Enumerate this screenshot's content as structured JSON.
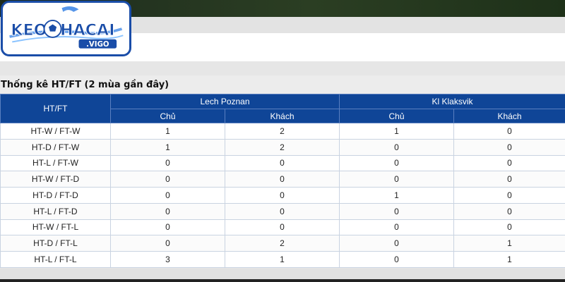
{
  "logo": {
    "brand": "KEONHACAI",
    "sub": ".VIGO"
  },
  "section": {
    "title": "Thống kê HT/FT (2 mùa gần đây)"
  },
  "table": {
    "col_label": "HT/FT",
    "teams": [
      {
        "name": "Lech Poznan",
        "home": "Chủ",
        "away": "Khách"
      },
      {
        "name": "Kl Klaksvik",
        "home": "Chủ",
        "away": "Khách"
      }
    ],
    "rows": [
      {
        "label": "HT-W / FT-W",
        "values": [
          "1",
          "2",
          "1",
          "0"
        ]
      },
      {
        "label": "HT-D / FT-W",
        "values": [
          "1",
          "2",
          "0",
          "0"
        ]
      },
      {
        "label": "HT-L / FT-W",
        "values": [
          "0",
          "0",
          "0",
          "0"
        ]
      },
      {
        "label": "HT-W / FT-D",
        "values": [
          "0",
          "0",
          "0",
          "0"
        ]
      },
      {
        "label": "HT-D / FT-D",
        "values": [
          "0",
          "0",
          "1",
          "0"
        ]
      },
      {
        "label": "HT-L / FT-D",
        "values": [
          "0",
          "0",
          "0",
          "0"
        ]
      },
      {
        "label": "HT-W / FT-L",
        "values": [
          "0",
          "0",
          "0",
          "0"
        ]
      },
      {
        "label": "HT-D / FT-L",
        "values": [
          "0",
          "2",
          "0",
          "1"
        ]
      },
      {
        "label": "HT-L / FT-L",
        "values": [
          "3",
          "1",
          "0",
          "1"
        ]
      }
    ]
  },
  "colors": {
    "header_bg": "#0f4597",
    "logo_border": "#1a4da8",
    "logo_accent": "#2a7be4"
  },
  "icons": {
    "logo_ball": "soccer-ball-icon"
  }
}
